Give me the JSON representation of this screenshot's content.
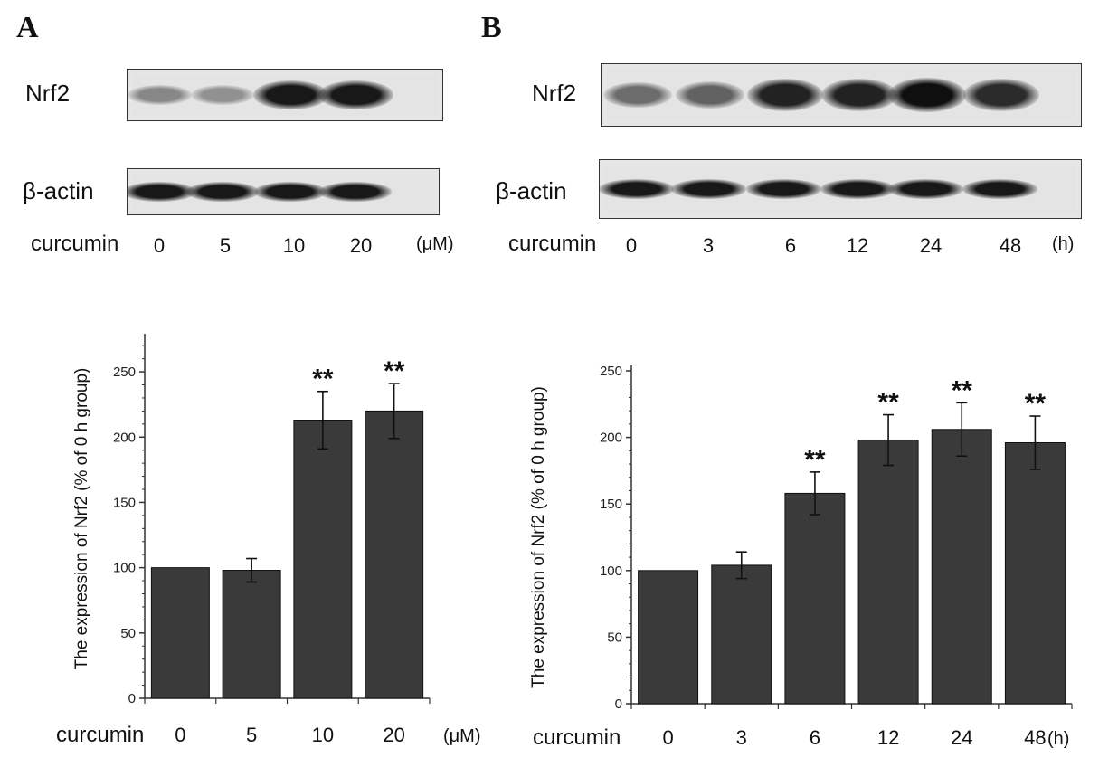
{
  "panels": {
    "a": {
      "letter": "A",
      "nrf2_label": "Nrf2",
      "actin_label": "β-actin",
      "curcumin_label": "curcumin",
      "lanes": [
        "0",
        "5",
        "10",
        "20"
      ],
      "unit": "(μM)",
      "nrf2_band_intensity": [
        0.35,
        0.3,
        0.95,
        0.95
      ],
      "actin_band_intensity": [
        0.95,
        0.95,
        0.95,
        0.95
      ]
    },
    "b": {
      "letter": "B",
      "nrf2_label": "Nrf2",
      "actin_label": "β-actin",
      "curcumin_label": "curcumin",
      "lanes": [
        "0",
        "3",
        "6",
        "12",
        "24",
        "48"
      ],
      "unit": "(h)",
      "nrf2_band_intensity": [
        0.5,
        0.55,
        0.9,
        0.9,
        1.0,
        0.85
      ],
      "actin_band_intensity": [
        0.95,
        0.95,
        0.95,
        0.95,
        0.95,
        0.95
      ]
    }
  },
  "chart_data": [
    {
      "type": "bar",
      "categories": [
        "0",
        "5",
        "10",
        "20"
      ],
      "values": [
        100,
        98,
        213,
        220
      ],
      "errors": [
        0,
        9,
        22,
        21
      ],
      "significance": [
        "",
        "",
        "**",
        "**"
      ],
      "ylabel": "The expression of Nrf2 (% of 0 h group)",
      "xlabel": "curcumin",
      "unit": "(μM)",
      "ylim": [
        0,
        275
      ],
      "yticks": [
        0,
        50,
        100,
        150,
        200,
        250
      ],
      "bar_color": "#3a3a3a"
    },
    {
      "type": "bar",
      "categories": [
        "0",
        "3",
        "6",
        "12",
        "24",
        "48"
      ],
      "values": [
        100,
        104,
        158,
        198,
        206,
        196
      ],
      "errors": [
        0,
        10,
        16,
        19,
        20,
        20
      ],
      "significance": [
        "",
        "",
        "**",
        "**",
        "**",
        "**"
      ],
      "ylabel": "The expression of Nrf2 (% of 0 h group)",
      "xlabel": "curcumin",
      "unit": "(h)",
      "ylim": [
        0,
        250
      ],
      "yticks": [
        0,
        50,
        100,
        150,
        200,
        250
      ],
      "bar_color": "#3a3a3a"
    }
  ]
}
